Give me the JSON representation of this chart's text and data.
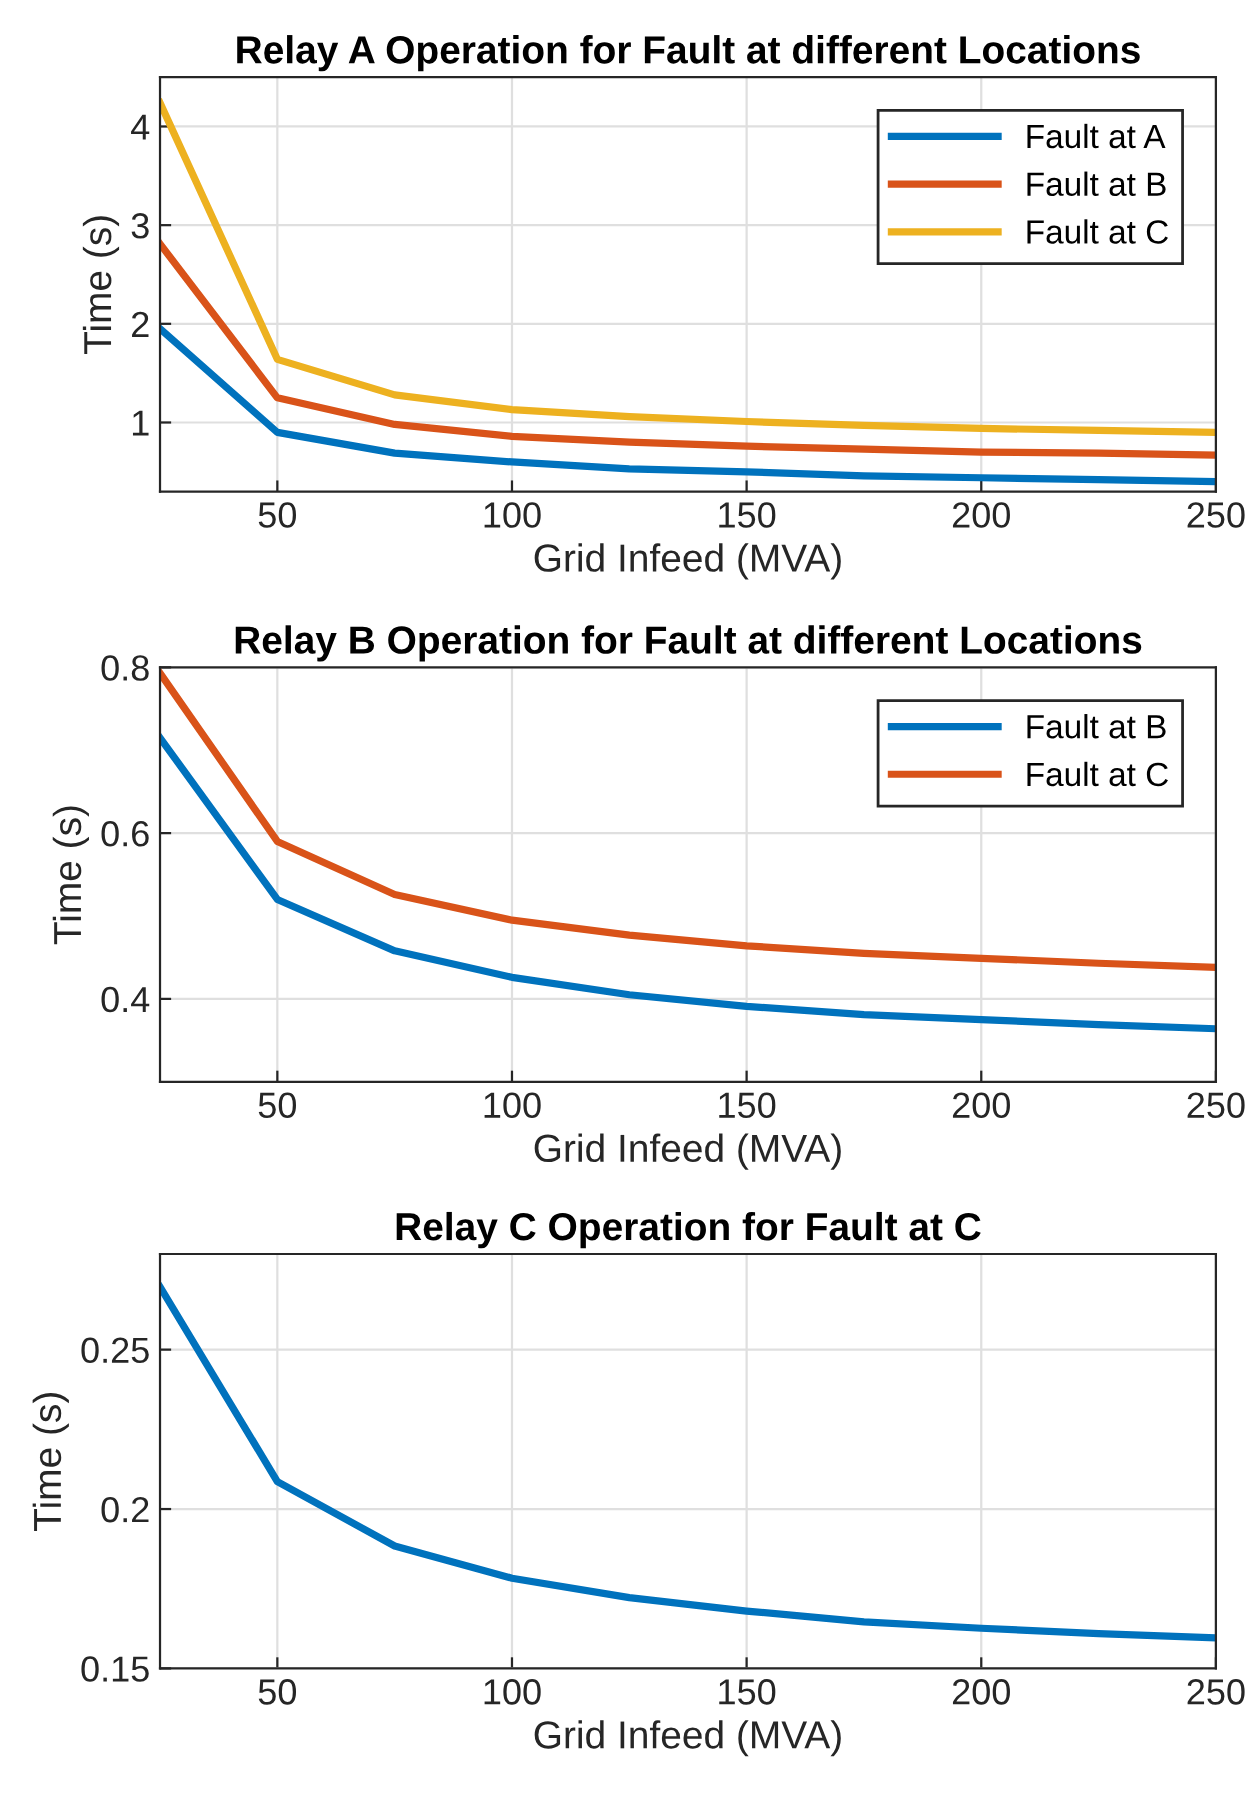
{
  "chart_data": [
    {
      "type": "line",
      "title": "Relay A Operation for Fault at different Locations",
      "xlabel": "Grid Infeed (MVA)",
      "ylabel": "Time (s)",
      "x": [
        25,
        50,
        75,
        100,
        125,
        150,
        175,
        200,
        225,
        250
      ],
      "series": [
        {
          "name": "Fault at A",
          "color": "#0072bd",
          "values": [
            1.95,
            0.9,
            0.69,
            0.6,
            0.53,
            0.5,
            0.46,
            0.44,
            0.42,
            0.4
          ]
        },
        {
          "name": "Fault at B",
          "color": "#d95319",
          "values": [
            2.81,
            1.25,
            0.98,
            0.86,
            0.8,
            0.76,
            0.73,
            0.7,
            0.69,
            0.67
          ]
        },
        {
          "name": "Fault at C",
          "color": "#edb120",
          "values": [
            4.24,
            1.64,
            1.28,
            1.13,
            1.06,
            1.01,
            0.97,
            0.94,
            0.92,
            0.9
          ]
        }
      ],
      "xlim": [
        25,
        250
      ],
      "xticks": [
        50,
        100,
        150,
        200,
        250
      ],
      "ylim": [
        0.3,
        4.5
      ],
      "yticks": [
        1,
        2,
        3,
        4
      ],
      "grid": true,
      "legend": "top right"
    },
    {
      "type": "line",
      "title": "Relay B Operation for Fault at different Locations",
      "xlabel": "Grid Infeed (MVA)",
      "ylabel": "Time (s)",
      "x": [
        25,
        50,
        75,
        100,
        125,
        150,
        175,
        200,
        225,
        250
      ],
      "series": [
        {
          "name": "Fault at B",
          "color": "#0072bd",
          "values": [
            0.715,
            0.52,
            0.458,
            0.426,
            0.405,
            0.391,
            0.381,
            0.375,
            0.369,
            0.364
          ]
        },
        {
          "name": "Fault at C",
          "color": "#d95319",
          "values": [
            0.793,
            0.59,
            0.526,
            0.495,
            0.477,
            0.464,
            0.455,
            0.449,
            0.443,
            0.438
          ]
        }
      ],
      "xlim": [
        25,
        250
      ],
      "xticks": [
        50,
        100,
        150,
        200,
        250
      ],
      "ylim": [
        0.3,
        0.8
      ],
      "yticks": [
        0.4,
        0.6,
        0.8
      ],
      "grid": true,
      "legend": "top right"
    },
    {
      "type": "line",
      "title": "Relay C Operation for Fault at C",
      "xlabel": "Grid Infeed (MVA)",
      "ylabel": "Time (s)",
      "x": [
        25,
        50,
        75,
        100,
        125,
        150,
        175,
        200,
        225,
        250
      ],
      "series": [
        {
          "color": "#0072bd",
          "values": [
            0.2697,
            0.2086,
            0.1884,
            0.1783,
            0.1722,
            0.168,
            0.1646,
            0.1626,
            0.1609,
            0.1596
          ]
        }
      ],
      "xlim": [
        25,
        250
      ],
      "xticks": [
        50,
        100,
        150,
        200,
        250
      ],
      "ylim": [
        0.15,
        0.28
      ],
      "yticks": [
        0.15,
        0.2,
        0.25
      ],
      "grid": true
    }
  ]
}
